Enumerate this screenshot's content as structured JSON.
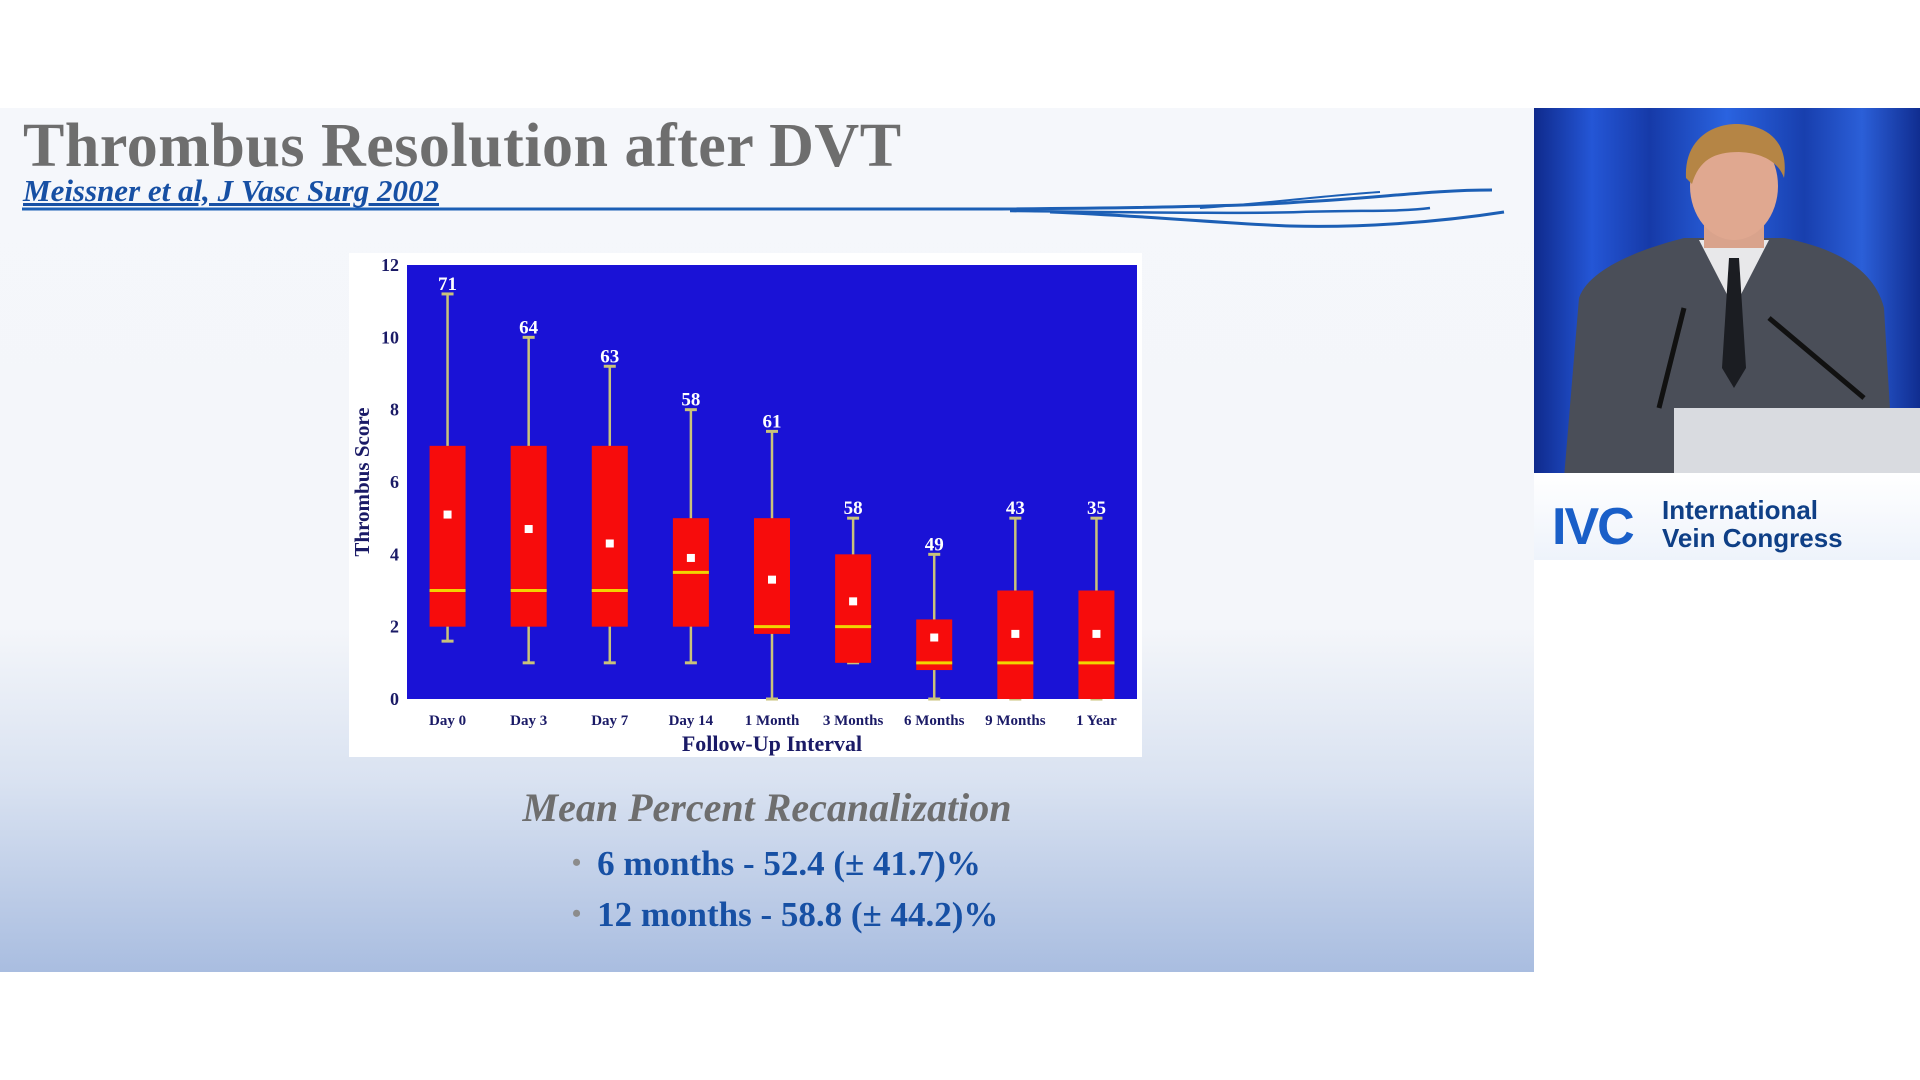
{
  "slide": {
    "title": "Thrombus Resolution after DVT",
    "citation": "Meissner et al, J Vasc Surg 2002"
  },
  "chart_data": {
    "type": "box",
    "title": "",
    "xlabel": "Follow-Up Interval",
    "ylabel": "Thrombus Score",
    "ylim": [
      0,
      12
    ],
    "yticks": [
      0,
      2,
      4,
      6,
      8,
      10,
      12
    ],
    "grid": false,
    "plot_background": "#1a12d6",
    "box_color": "#f70c0c",
    "median_color": "#f2d400",
    "whisker_color": "#c9c27a",
    "mean_marker_color": "#ffffff",
    "categories": [
      "Day 0",
      "Day 3",
      "Day 7",
      "Day 14",
      "1 Month",
      "3 Months",
      "6 Months",
      "9 Months",
      "1 Year"
    ],
    "n_labels": [
      "71",
      "64",
      "63",
      "58",
      "61",
      "58",
      "49",
      "43",
      "35"
    ],
    "whisker_low": [
      1.6,
      1,
      1,
      1,
      0,
      1,
      0,
      0,
      0
    ],
    "q1": [
      2,
      2,
      2,
      2,
      1.8,
      1,
      0.8,
      0,
      0
    ],
    "median": [
      3,
      3,
      3,
      3.5,
      2,
      2,
      1,
      1,
      1
    ],
    "q3": [
      7,
      7,
      7,
      5,
      5,
      4,
      2.2,
      3,
      3
    ],
    "whisker_high": [
      11.2,
      10,
      9.2,
      8,
      7.4,
      5,
      4,
      5,
      5
    ],
    "mean": [
      5.1,
      4.7,
      4.3,
      3.9,
      3.3,
      2.7,
      1.7,
      1.8,
      1.8
    ]
  },
  "summary": {
    "heading": "Mean Percent Recanalization",
    "bullet_symbol": "•",
    "items": [
      "6 months - 52.4 (± 41.7)%",
      "12 months - 58.8 (± 44.2)%"
    ]
  },
  "video": {
    "logo_text": "IVC",
    "org_line1": "International",
    "org_line2": "Vein Congress",
    "brand_color": "#1a5fc8"
  }
}
